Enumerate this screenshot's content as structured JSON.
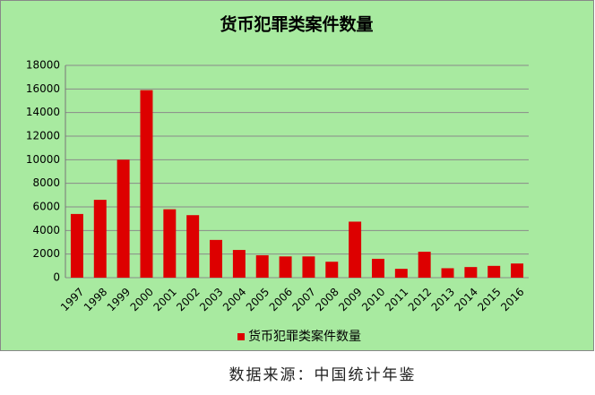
{
  "chart_data": {
    "type": "bar",
    "title": "货币犯罪类案件数量",
    "categories": [
      "1997",
      "1998",
      "1999",
      "2000",
      "2001",
      "2002",
      "2003",
      "2004",
      "2005",
      "2006",
      "2007",
      "2008",
      "2009",
      "2010",
      "2011",
      "2012",
      "2013",
      "2014",
      "2015",
      "2016"
    ],
    "series": [
      {
        "name": "货币犯罪类案件数量",
        "color": "#dd0000",
        "values": [
          5400,
          6600,
          10000,
          15900,
          5800,
          5300,
          3200,
          2350,
          1900,
          1800,
          1800,
          1350,
          4750,
          1600,
          750,
          2200,
          800,
          900,
          1000,
          1200
        ]
      }
    ],
    "ylim": [
      0,
      18000
    ],
    "yticks": [
      0,
      2000,
      4000,
      6000,
      8000,
      10000,
      12000,
      14000,
      16000,
      18000
    ],
    "grid": true,
    "legend": "bottom",
    "source": "数据来源：中国统计年鉴"
  }
}
